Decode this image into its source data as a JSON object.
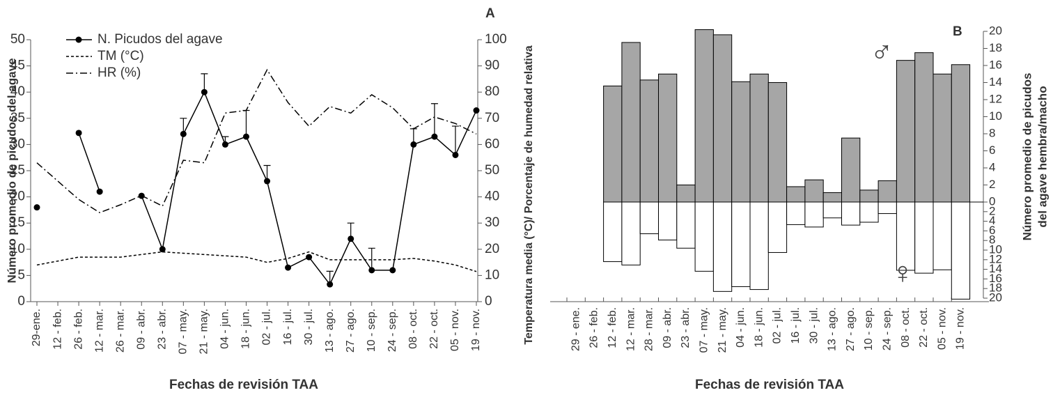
{
  "chart_data": [
    {
      "type": "line",
      "title": "A",
      "categories": [
        "29-ene.",
        "12 - feb.",
        "26 - feb.",
        "12 - mar.",
        "26 - mar.",
        "09 - abr.",
        "23 - abr.",
        "07 - may.",
        "21 - may.",
        "04 - jun.",
        "18 - jun.",
        "02 - jul.",
        "16 - jul.",
        "30 - jul.",
        "13 - ago.",
        "27 - ago.",
        "10 - sep.",
        "24 - sep.",
        "08 - oct.",
        "22 - oct.",
        "05 - nov.",
        "19 - nov."
      ],
      "xlabel": "Fechas de revisión TAA",
      "ylabel": "Número promedio de picudos del agave",
      "y2label": "Temperatura media (°C)/ Porcentaje de humedad relativa",
      "ylim": [
        0,
        50
      ],
      "yticks": [
        0,
        5,
        10,
        15,
        20,
        25,
        30,
        35,
        40,
        45,
        50
      ],
      "y2lim": [
        0,
        100
      ],
      "y2ticks": [
        0,
        10,
        20,
        30,
        40,
        50,
        60,
        70,
        80,
        90,
        100
      ],
      "legend": "upper left",
      "series": [
        {
          "name": "N. Picudos del agave",
          "color": "#000000",
          "linestyle": "solid",
          "marker": "circle",
          "values": [
            18,
            null,
            32.2,
            21,
            null,
            20.2,
            10,
            32,
            40,
            30,
            31.5,
            23,
            6.5,
            8.5,
            3.3,
            12,
            6,
            6,
            30,
            31.5,
            28,
            36.5
          ],
          "errors": [
            null,
            null,
            null,
            null,
            null,
            null,
            null,
            3,
            3.5,
            1.5,
            5,
            3,
            null,
            null,
            2.5,
            3,
            4.2,
            null,
            3,
            6.3,
            5.5,
            null
          ]
        },
        {
          "name": "TM (°C)",
          "color": "#000000",
          "linestyle": "dashed",
          "axis": "y2",
          "values": [
            14,
            15.5,
            17,
            17,
            17,
            18,
            19,
            18.5,
            18,
            17.5,
            17,
            15,
            16.5,
            19,
            16,
            16,
            16,
            16,
            16.5,
            15.5,
            14,
            11.5
          ]
        },
        {
          "name": "HR (%)",
          "color": "#000000",
          "linestyle": "dashdot",
          "axis": "y2",
          "values": [
            53,
            46,
            39,
            34,
            37,
            40.5,
            36.5,
            54,
            53,
            72,
            73,
            88.5,
            76,
            67,
            74.5,
            72,
            79,
            74,
            66,
            70.5,
            68,
            64
          ]
        }
      ]
    },
    {
      "type": "bar",
      "title": "B",
      "categories": [
        "29 - ene.",
        "26 - feb.",
        "12 - feb.",
        "12 - mar.",
        "28 - mar.",
        "09 - abr.",
        "23 - abr.",
        "07 - may.",
        "21 - may.",
        "04 - jun.",
        "18 - jun.",
        "02 - jul.",
        "16 - jul.",
        "30 - jul.",
        "13 - ago.",
        "27 - ago.",
        "10 - sep.",
        "24 - sep.",
        "08 - oct.",
        "22 - oct.",
        "05 - nov.",
        "19 - nov."
      ],
      "xlabel": "Fechas de revisión TAA",
      "ylabel": [
        "Número promedio de picudos",
        "del agave hembra/macho"
      ],
      "ylim": [
        0,
        20
      ],
      "yticks": [
        0,
        2,
        4,
        6,
        8,
        10,
        12,
        14,
        16,
        18,
        20
      ],
      "y2lim": [
        0,
        20
      ],
      "y2ticks": [
        2,
        4,
        6,
        8,
        10,
        12,
        14,
        16,
        18,
        20
      ],
      "series": [
        {
          "name": "♂",
          "color": "#a6a6a6",
          "values": [
            null,
            null,
            13.6,
            18.7,
            14.3,
            15.0,
            2.0,
            20.2,
            19.6,
            14.1,
            15.0,
            14.0,
            1.8,
            2.6,
            1.1,
            7.5,
            1.4,
            2.5,
            16.6,
            17.5,
            15.0,
            16.1
          ]
        },
        {
          "name": "♀",
          "color": "#ffffff",
          "axis": "y2",
          "values": [
            null,
            null,
            12.4,
            13.1,
            6.6,
            7.9,
            9.6,
            14.4,
            18.6,
            17.6,
            18.2,
            10.5,
            4.7,
            5.2,
            3.3,
            4.8,
            4.2,
            2.4,
            14.2,
            14.8,
            14.1,
            20.2
          ]
        }
      ]
    }
  ]
}
